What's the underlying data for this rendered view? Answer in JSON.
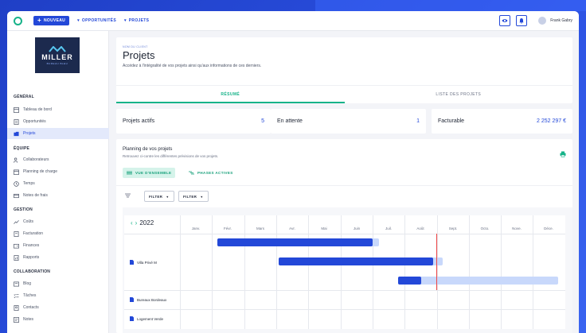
{
  "topbar": {
    "new_label": "NOUVEAU",
    "nav": [
      "OPPORTUNITÉS",
      "PROJETS"
    ],
    "user_name": "Frank Gabry"
  },
  "sidebar": {
    "brand": {
      "name": "MILLER",
      "sub": "BUREAU BLEU"
    },
    "sections": [
      {
        "title": "GÉNÉRAL",
        "items": [
          "Tableau de bord",
          "Opportunités",
          "Projets"
        ]
      },
      {
        "title": "ÉQUIPE",
        "items": [
          "Collaborateurs",
          "Planning de charge",
          "Temps",
          "Notes de frais"
        ]
      },
      {
        "title": "GESTION",
        "items": [
          "Coûts",
          "Facturation",
          "Finances",
          "Rapports"
        ]
      },
      {
        "title": "COLLABORATION",
        "items": [
          "Blog",
          "Tâches",
          "Contacts",
          "Notes"
        ]
      }
    ],
    "active_item": "Projets"
  },
  "header": {
    "breadcrumb": "NOM DU CLIENT",
    "title": "Projets",
    "subtitle": "Accédez à l'intégralité de vos projets ainsi qu'aux informations de ces derniers.",
    "tabs": [
      "RÉSUMÉ",
      "LISTE DES PROJETS"
    ]
  },
  "stats": [
    {
      "label": "Projets actifs",
      "value": "5"
    },
    {
      "label": "En attente",
      "value": "1"
    },
    {
      "label": "Facturable",
      "value": "2 252 297 €"
    }
  ],
  "planning": {
    "title": "Planning de vos projets",
    "subtitle": "Retrouvez ci-contre les différentes prévisions de vos projets.",
    "chips": [
      "VUE D'ENSEMBLE",
      "PHASES ACTIVES"
    ],
    "filters": [
      "FILTER",
      "FILTER"
    ],
    "year": "2022",
    "months": [
      "Janv.",
      "Févr.",
      "Mars",
      "Avr.",
      "Mai",
      "Juin",
      "Juil.",
      "Août",
      "Sept.",
      "Octo.",
      "Nove.",
      "Déce."
    ],
    "rows": [
      {
        "name": "Villa Privé M"
      },
      {
        "name": "Bureaux Bordeaux"
      },
      {
        "name": "Logement Verde"
      }
    ],
    "colors": {
      "accent": "#17b389",
      "primary": "#2348d8",
      "track": "#c8d8fb",
      "today": "#ee4444"
    }
  }
}
